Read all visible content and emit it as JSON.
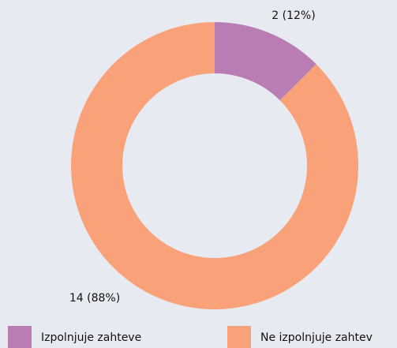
{
  "chart_data": {
    "type": "donut",
    "categories": [
      "Izpolnjuje zahteve",
      "Ne izpolnjuje zahtev"
    ],
    "values": [
      2,
      14
    ],
    "value_labels": [
      "2 (12%)",
      "14 (88%)"
    ],
    "colors": [
      "#b97db4",
      "#f9a178"
    ],
    "legend": "bottom"
  }
}
